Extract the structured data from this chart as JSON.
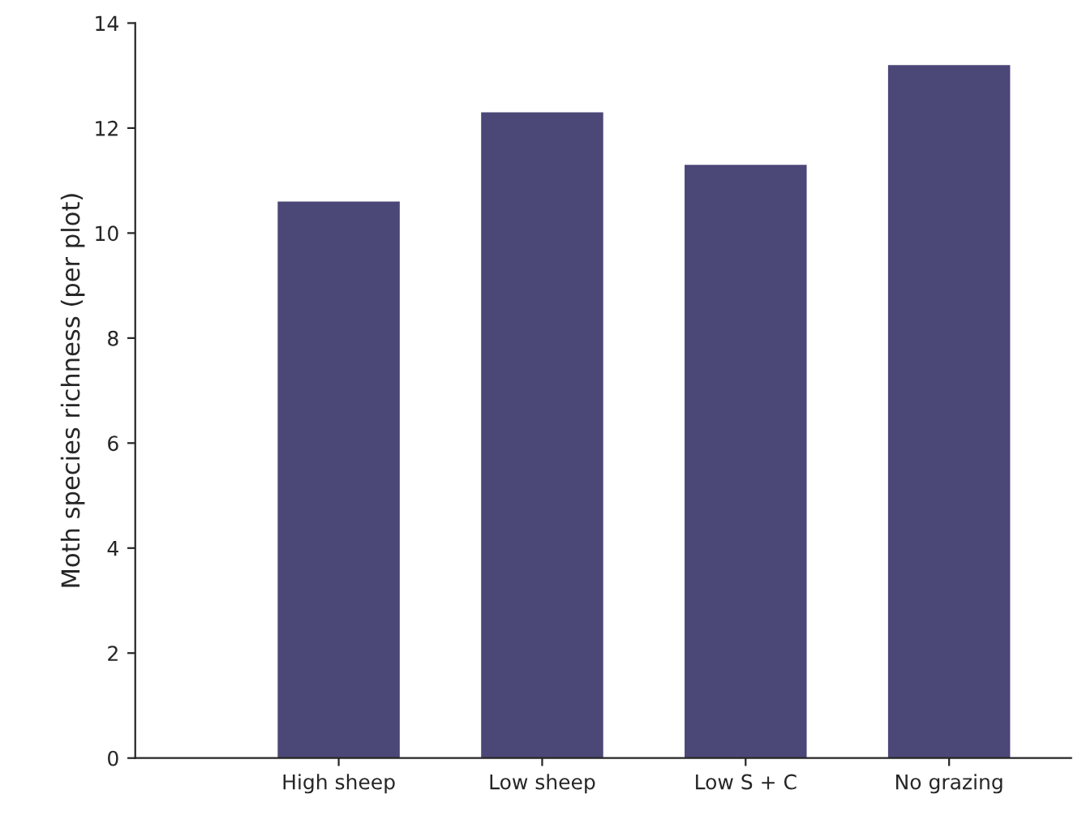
{
  "chart_data": {
    "type": "bar",
    "ylabel": "Moth species richness (per plot)",
    "categories": [
      "High sheep",
      "Low sheep",
      "Low S + C",
      "No grazing"
    ],
    "values": [
      10.6,
      12.3,
      11.3,
      13.2
    ],
    "color": "#4b4777",
    "ylim": [
      0,
      14
    ],
    "yticks": [
      0,
      2,
      4,
      6,
      8,
      10,
      12,
      14
    ],
    "grid": false,
    "legend": false
  }
}
